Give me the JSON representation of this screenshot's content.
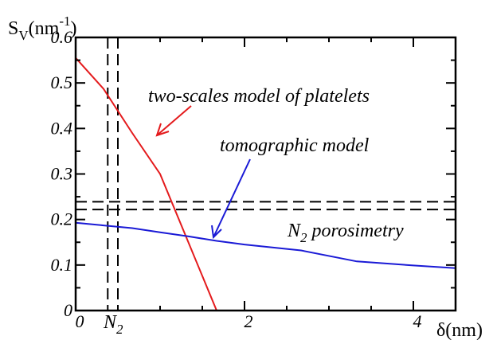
{
  "chart_data": {
    "type": "line",
    "ylabel_main": "S",
    "ylabel_sub": "V",
    "ylabel_unit": "(nm",
    "ylabel_sup": "-1",
    "ylabel_close": ")",
    "xlabel": "δ(nm)",
    "xlim": [
      0,
      4.5
    ],
    "ylim": [
      0,
      0.6
    ],
    "xticks": [
      0,
      2,
      4
    ],
    "xtick_labels": [
      "0",
      "2",
      "4"
    ],
    "yticks": [
      0,
      0.1,
      0.2,
      0.3,
      0.4,
      0.5,
      0.6
    ],
    "ytick_labels": [
      "0",
      "0.1",
      "0.2",
      "0.3",
      "0.4",
      "0.5",
      "0.6"
    ],
    "grid": false,
    "series": [
      {
        "color": "#e41a1c",
        "x": [
          0,
          0.33,
          0.67,
          1.0,
          1.67,
          2.0
        ],
        "y": [
          0.555,
          0.487,
          0.39,
          0.3,
          0.0,
          0.0
        ]
      },
      {
        "color": "#1a1ad6",
        "x": [
          0,
          0.33,
          0.67,
          1.0,
          1.33,
          1.67,
          2.0,
          2.67,
          3.33,
          4.0,
          4.5
        ],
        "y": [
          0.193,
          0.187,
          0.181,
          0.172,
          0.163,
          0.153,
          0.145,
          0.132,
          0.108,
          0.099,
          0.093
        ]
      }
    ],
    "reference_lines": {
      "horizontal": [
        0.239,
        0.222
      ],
      "vertical": [
        0.38,
        0.5
      ],
      "style": "dashed",
      "color": "#000000"
    },
    "annotations": {
      "red_label": "two-scales model of platelets",
      "blue_label": "tomographic model",
      "hline_label_main": "N",
      "hline_label_sub": "2",
      "hline_label_rest": " porosimetry",
      "vline_label_main": "N",
      "vline_label_sub": "2"
    }
  }
}
